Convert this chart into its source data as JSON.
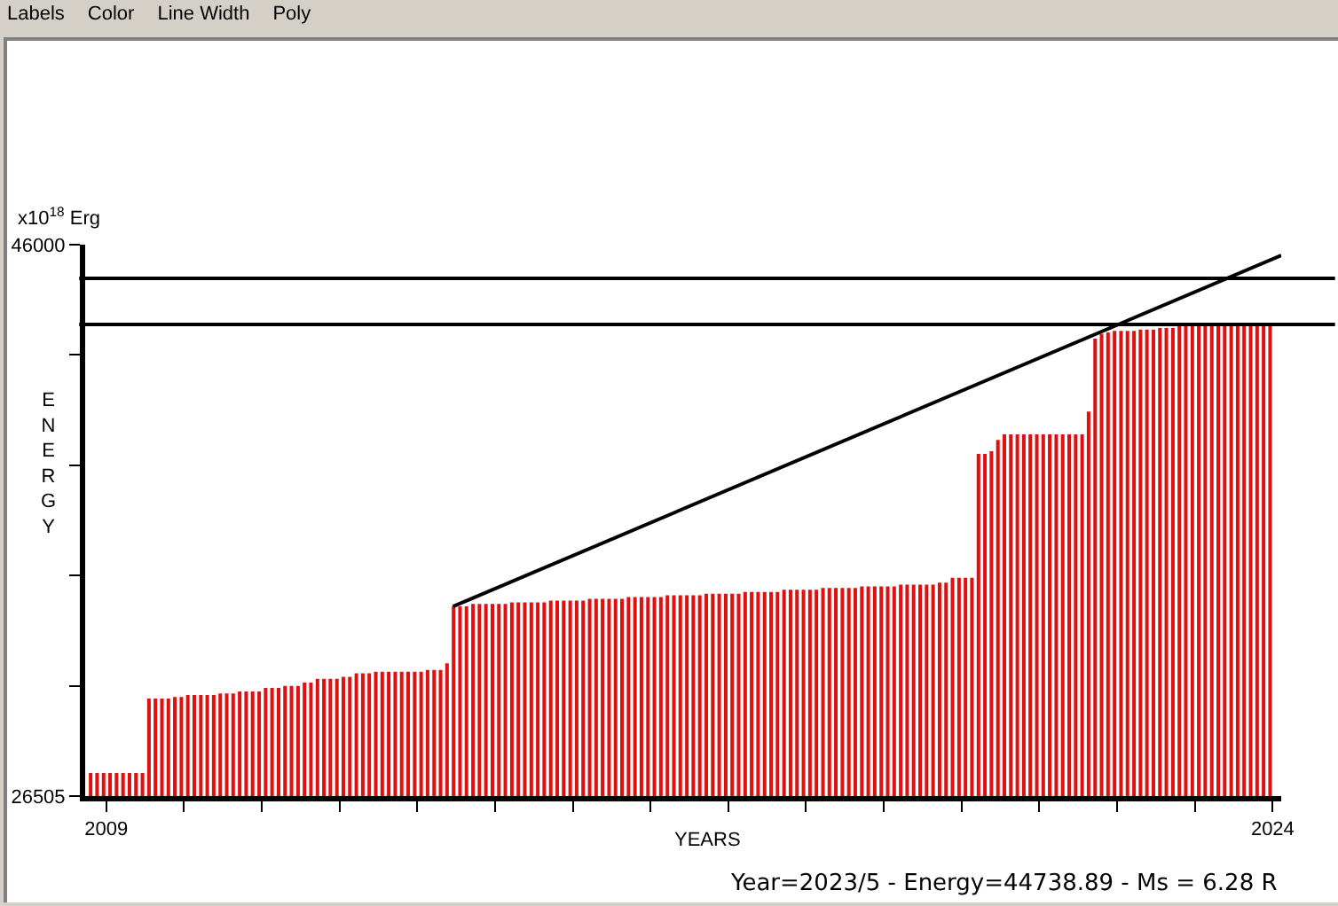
{
  "chart_data": {
    "type": "bar",
    "xlabel": "YEARS",
    "ylabel": "ENERGY",
    "annotations": [
      "x10$^{18}$ Erg",
      "Year=2023/5 - Energy=44738.89 - Ms = 6.28 R",
      "Labels",
      "Color",
      "Line Width",
      "Poly"
    ],
    "x": [
      2008.8,
      2008.883,
      2008.967,
      2009.05,
      2009.133,
      2009.217,
      2009.3,
      2009.383,
      2009.467,
      2009.55,
      2009.633,
      2009.717,
      2009.8,
      2009.883,
      2009.967,
      2010.05,
      2010.133,
      2010.217,
      2010.3,
      2010.383,
      2010.467,
      2010.55,
      2010.633,
      2010.717,
      2010.8,
      2010.883,
      2010.967,
      2011.05,
      2011.133,
      2011.217,
      2011.3,
      2011.383,
      2011.467,
      2011.55,
      2011.633,
      2011.717,
      2011.8,
      2011.883,
      2011.967,
      2012.05,
      2012.133,
      2012.217,
      2012.3,
      2012.383,
      2012.467,
      2012.55,
      2012.633,
      2012.717,
      2012.8,
      2012.883,
      2012.967,
      2013.05,
      2013.133,
      2013.217,
      2013.3,
      2013.383,
      2013.467,
      2013.55,
      2013.633,
      2013.717,
      2013.8,
      2013.883,
      2013.967,
      2014.05,
      2014.133,
      2014.217,
      2014.3,
      2014.383,
      2014.467,
      2014.55,
      2014.633,
      2014.717,
      2014.8,
      2014.883,
      2014.967,
      2015.05,
      2015.133,
      2015.217,
      2015.3,
      2015.383,
      2015.467,
      2015.55,
      2015.633,
      2015.717,
      2015.8,
      2015.883,
      2015.967,
      2016.05,
      2016.133,
      2016.217,
      2016.3,
      2016.383,
      2016.467,
      2016.55,
      2016.633,
      2016.717,
      2016.8,
      2016.883,
      2016.967,
      2017.05,
      2017.133,
      2017.217,
      2017.3,
      2017.383,
      2017.467,
      2017.55,
      2017.633,
      2017.717,
      2017.8,
      2017.883,
      2017.967,
      2018.05,
      2018.133,
      2018.217,
      2018.3,
      2018.383,
      2018.467,
      2018.55,
      2018.633,
      2018.717,
      2018.8,
      2018.883,
      2018.967,
      2019.05,
      2019.133,
      2019.217,
      2019.3,
      2019.383,
      2019.467,
      2019.55,
      2019.633,
      2019.717,
      2019.8,
      2019.883,
      2019.967,
      2020.05,
      2020.133,
      2020.217,
      2020.3,
      2020.383,
      2020.467,
      2020.55,
      2020.633,
      2020.717,
      2020.8,
      2020.883,
      2020.967,
      2021.05,
      2021.133,
      2021.217,
      2021.3,
      2021.383,
      2021.467,
      2021.55,
      2021.633,
      2021.717,
      2021.8,
      2021.883,
      2021.967,
      2022.05,
      2022.133,
      2022.217,
      2022.3,
      2022.383,
      2022.467,
      2022.55,
      2022.633,
      2022.717,
      2022.8,
      2022.883,
      2022.967,
      2023.05,
      2023.133,
      2023.217,
      2023.3,
      2023.383,
      2023.467,
      2023.55,
      2023.633,
      2023.717,
      2023.8,
      2023.883,
      2023.967
    ],
    "series": [
      {
        "color": "#e01010",
        "values": [
          27320,
          27320,
          27320,
          27320,
          27320,
          27320,
          27320,
          27320,
          27320,
          29950,
          29950,
          29950,
          29950,
          30010,
          30010,
          30080,
          30080,
          30080,
          30080,
          30080,
          30130,
          30130,
          30130,
          30200,
          30200,
          30200,
          30200,
          30330,
          30330,
          30330,
          30400,
          30400,
          30400,
          30520,
          30520,
          30650,
          30650,
          30650,
          30650,
          30720,
          30720,
          30850,
          30850,
          30850,
          30900,
          30900,
          30900,
          30900,
          30900,
          30900,
          30900,
          30900,
          30960,
          30960,
          30960,
          31200,
          33210,
          33210,
          33210,
          33300,
          33300,
          33300,
          33300,
          33300,
          33300,
          33350,
          33350,
          33350,
          33350,
          33350,
          33350,
          33420,
          33420,
          33420,
          33420,
          33420,
          33420,
          33480,
          33480,
          33480,
          33480,
          33480,
          33480,
          33540,
          33540,
          33540,
          33540,
          33540,
          33540,
          33600,
          33600,
          33600,
          33600,
          33600,
          33600,
          33660,
          33660,
          33660,
          33660,
          33660,
          33660,
          33720,
          33720,
          33720,
          33720,
          33720,
          33720,
          33800,
          33800,
          33800,
          33800,
          33800,
          33800,
          33860,
          33860,
          33860,
          33860,
          33860,
          33860,
          33920,
          33920,
          33920,
          33920,
          33920,
          33920,
          33980,
          33980,
          33980,
          33980,
          33980,
          33980,
          34050,
          34050,
          34220,
          34220,
          34220,
          34220,
          38600,
          38600,
          38700,
          39100,
          39290,
          39290,
          39290,
          39290,
          39290,
          39290,
          39290,
          39290,
          39290,
          39290,
          39290,
          39290,
          39290,
          40100,
          42680,
          42850,
          42900,
          42950,
          42950,
          42950,
          42950,
          43000,
          43000,
          43000,
          43050,
          43050,
          43050,
          43170,
          43170,
          43170,
          43170,
          43170,
          43170,
          43170,
          43170,
          43170,
          43170,
          43170,
          43170,
          43170,
          43170,
          43170
        ]
      },
      {
        "type": "line",
        "color": "#000000",
        "x": [
          2013.46,
          2024.11
        ],
        "values": [
          33210,
          45620
        ]
      }
    ],
    "ref_lines": [
      {
        "axis": "y",
        "value": 44810,
        "color": "#000000"
      },
      {
        "axis": "y",
        "value": 43180,
        "color": "#000000"
      }
    ],
    "xlim": [
      2008.73,
      2024.11
    ],
    "ylim": [
      26505,
      46000
    ],
    "xticks": [
      2009,
      {
        "value": 2010,
        "label": null
      },
      {
        "value": 2011,
        "label": null
      },
      {
        "value": 2012,
        "label": null
      },
      {
        "value": 2013,
        "label": null
      },
      {
        "value": 2014,
        "label": null
      },
      {
        "value": 2015,
        "label": null
      },
      {
        "value": 2016,
        "label": null
      },
      {
        "value": 2017,
        "label": null
      },
      {
        "value": 2018,
        "label": null
      },
      {
        "value": 2019,
        "label": null
      },
      {
        "value": 2020,
        "label": null
      },
      {
        "value": 2021,
        "label": null
      },
      {
        "value": 2022,
        "label": null
      },
      {
        "value": 2023,
        "label": null
      },
      2024
    ],
    "yticks": [
      26505,
      {
        "value": 30404,
        "label": null
      },
      {
        "value": 34303,
        "label": null
      },
      {
        "value": 38202,
        "label": null
      },
      {
        "value": 42101,
        "label": null
      },
      46000
    ],
    "grid": false
  }
}
